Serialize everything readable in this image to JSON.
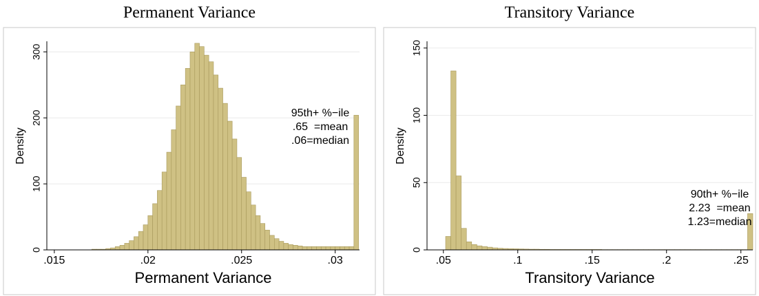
{
  "chart_data": [
    {
      "type": "histogram",
      "title": "Permanent Variance",
      "xlabel": "Permanent Variance",
      "ylabel": "Density",
      "color": "#cfc184",
      "bins": [
        0.017,
        0.01725,
        0.0175,
        0.01775,
        0.018,
        0.01825,
        0.0185,
        0.01875,
        0.019,
        0.01925,
        0.0195,
        0.01975,
        0.02,
        0.02025,
        0.0205,
        0.02075,
        0.021,
        0.02125,
        0.0215,
        0.02175,
        0.022,
        0.02225,
        0.0225,
        0.02275,
        0.023,
        0.02325,
        0.0235,
        0.02375,
        0.024,
        0.02425,
        0.0245,
        0.02475,
        0.025,
        0.02525,
        0.0255,
        0.02575,
        0.026,
        0.02625,
        0.0265,
        0.02675,
        0.027,
        0.02725,
        0.0275,
        0.02775,
        0.028,
        0.02825,
        0.0285,
        0.02875,
        0.029,
        0.02925,
        0.0295,
        0.02975,
        0.03,
        0.03025,
        0.0305,
        0.03075,
        0.031,
        0.03125
      ],
      "values": [
        1,
        1,
        1,
        2,
        3,
        5,
        7,
        10,
        14,
        20,
        28,
        38,
        52,
        70,
        90,
        118,
        148,
        182,
        218,
        250,
        275,
        300,
        313,
        308,
        295,
        285,
        265,
        245,
        222,
        195,
        168,
        140,
        110,
        88,
        68,
        52,
        40,
        30,
        22,
        17,
        13,
        10,
        8,
        7,
        6,
        5,
        5,
        5,
        5,
        5,
        5,
        5,
        5,
        5,
        5,
        5,
        204
      ],
      "xlim": [
        0.0146,
        0.0313
      ],
      "xticks": [
        {
          "value": 0.015,
          "label": ".015"
        },
        {
          "value": 0.02,
          "label": ".02"
        },
        {
          "value": 0.025,
          "label": ".025"
        },
        {
          "value": 0.03,
          "label": ".03"
        }
      ],
      "ylim": [
        0,
        316
      ],
      "yticks": [
        0,
        100,
        200,
        300
      ],
      "grid": true,
      "annotations": [
        "95th+ %−ile",
        ".65  =mean",
        ".06=median"
      ]
    },
    {
      "type": "histogram",
      "title": "Transitory Variance",
      "xlabel": "Transitory Variance",
      "ylabel": "Density",
      "color": "#cfc184",
      "bins": [
        0.0515,
        0.055,
        0.0585,
        0.062,
        0.0655,
        0.069,
        0.0725,
        0.076,
        0.0795,
        0.083,
        0.0865,
        0.09,
        0.0935,
        0.097,
        0.1005,
        0.104,
        0.1075,
        0.111,
        0.1145,
        0.118,
        0.1215,
        0.125,
        0.1285,
        0.132,
        0.1355,
        0.139,
        0.1425,
        0.146,
        0.1495,
        0.153,
        0.1565,
        0.16,
        0.1635,
        0.167,
        0.1705,
        0.174,
        0.1775,
        0.181,
        0.1845,
        0.188,
        0.1915,
        0.195,
        0.1985,
        0.202,
        0.2055,
        0.209,
        0.2125,
        0.216,
        0.2195,
        0.223,
        0.2265,
        0.23,
        0.2335,
        0.237,
        0.2405,
        0.244,
        0.2475,
        0.251,
        0.2545,
        0.258
      ],
      "values": [
        10,
        133,
        55,
        16,
        6,
        4,
        3,
        2.5,
        2,
        1.5,
        1.2,
        1,
        0.9,
        0.8,
        0.7,
        0.6,
        0.5,
        0.5,
        0.4,
        0.4,
        0.3,
        0.3,
        0.3,
        0.3,
        0.3,
        0.3,
        0.3,
        0.3,
        0.3,
        0.3,
        0.2,
        0.2,
        0.2,
        0.2,
        0.2,
        0.2,
        0.2,
        0.2,
        0.2,
        0.2,
        0.2,
        0.2,
        0.2,
        0.2,
        0.2,
        0.2,
        0.2,
        0.2,
        0.2,
        0.2,
        0.2,
        0.2,
        0.2,
        0.2,
        0.2,
        0.2,
        0.2,
        0.2,
        27
      ],
      "xlim": [
        0.039,
        0.258
      ],
      "xticks": [
        {
          "value": 0.05,
          "label": ".05"
        },
        {
          "value": 0.1,
          "label": ".1"
        },
        {
          "value": 0.15,
          "label": ".15"
        },
        {
          "value": 0.2,
          "label": ".2"
        },
        {
          "value": 0.25,
          "label": ".25"
        }
      ],
      "ylim": [
        0,
        155
      ],
      "yticks": [
        0,
        50,
        100,
        150
      ],
      "grid": true,
      "annotations": [
        "90th+ %−ile",
        "2.23  =mean",
        "1.23=median"
      ]
    }
  ]
}
